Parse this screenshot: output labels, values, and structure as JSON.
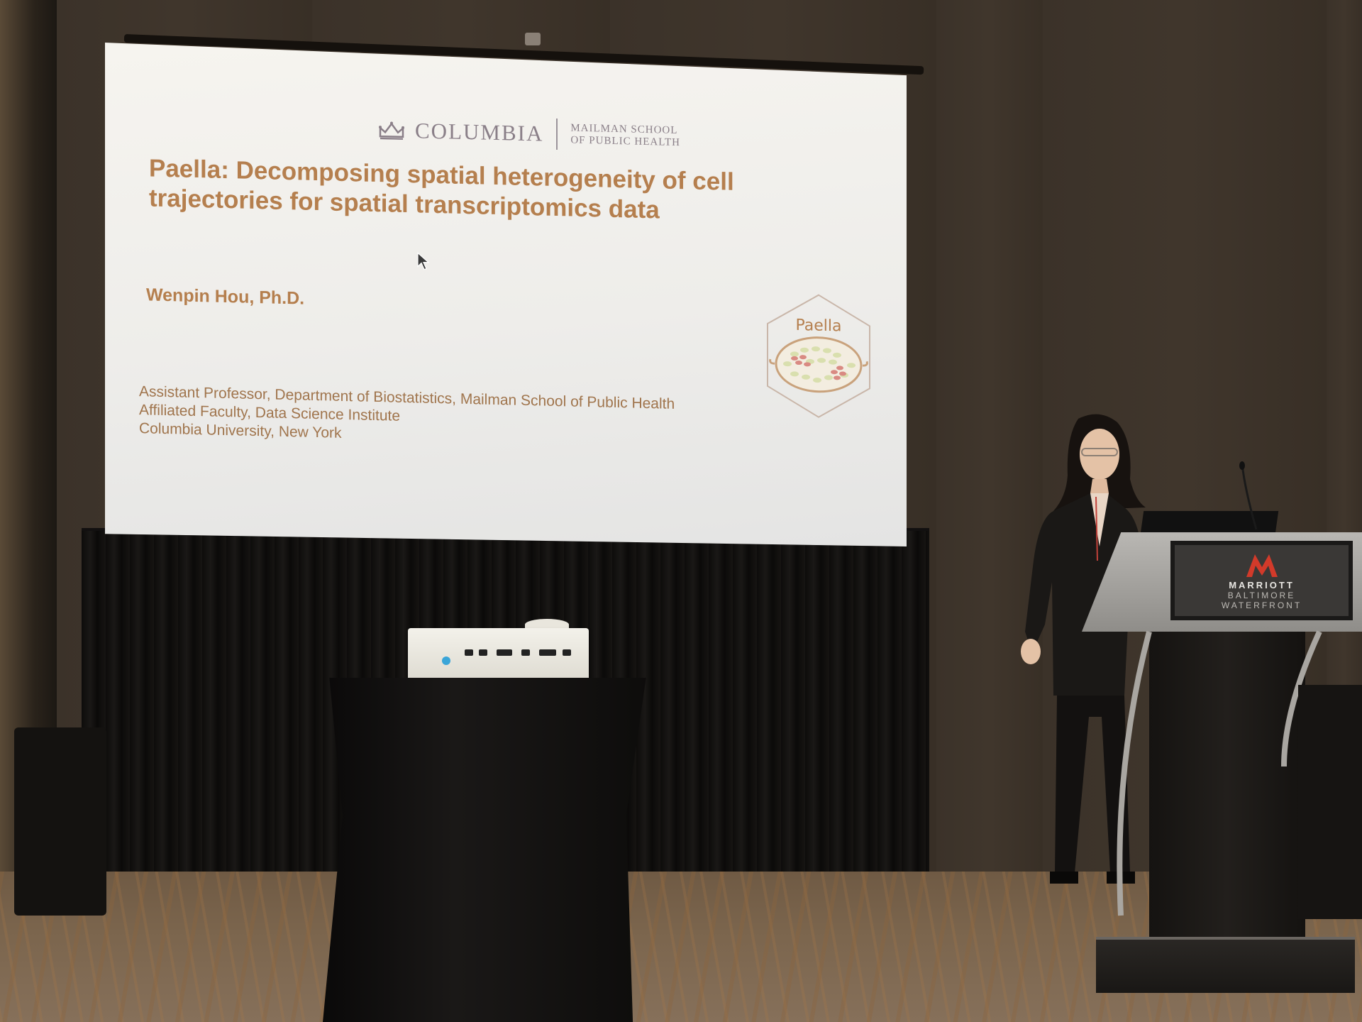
{
  "slide": {
    "logo": {
      "main": "COLUMBIA",
      "sub_line1": "MAILMAN SCHOOL",
      "sub_line2": "OF PUBLIC HEALTH"
    },
    "title_line1": "Paella: Decomposing spatial heterogeneity of cell",
    "title_line2": "trajectories for spatial transcriptomics data",
    "author": "Wenpin Hou, Ph.D.",
    "affiliations": [
      "Assistant Professor, Department of Biostatistics, Mailman School of Public Health",
      "Affiliated Faculty, Data Science Institute",
      "Columbia University, New York"
    ],
    "badge_label": "Paella"
  },
  "podium": {
    "brand": "MARRIOTT",
    "location_line1": "BALTIMORE",
    "location_line2": "WATERFRONT"
  },
  "colors": {
    "title": "#b57f4e",
    "logo": "#8a7f88",
    "marriott_red": "#d23a2a"
  }
}
